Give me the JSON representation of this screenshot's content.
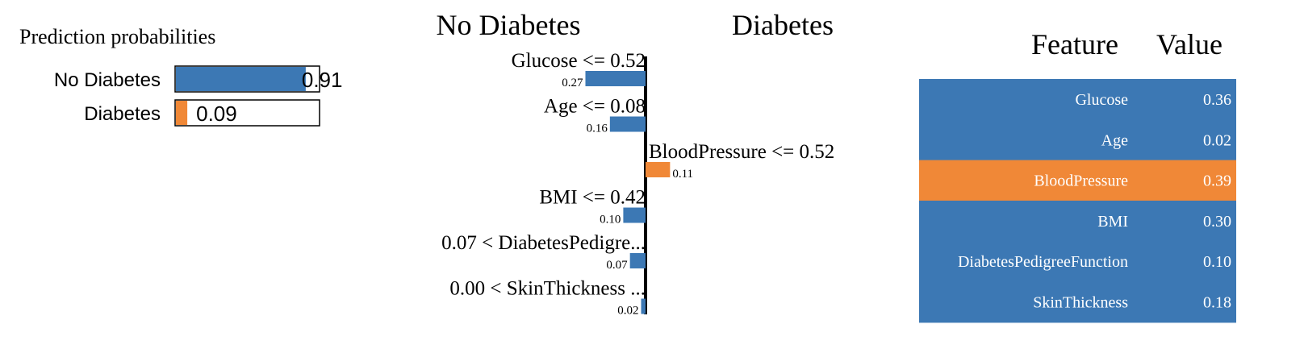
{
  "colors": {
    "negative": "#3c78b4",
    "positive": "#f08837",
    "text_dark": "#000000",
    "table_text": "#ffffff"
  },
  "prediction_probabilities": {
    "title": "Prediction probabilities",
    "classes": [
      {
        "label": "No Diabetes",
        "value": 0.91,
        "value_text": "0.91",
        "color": "negative"
      },
      {
        "label": "Diabetes",
        "value": 0.09,
        "value_text": "0.09",
        "color": "positive"
      }
    ]
  },
  "explanation": {
    "left_class": "No Diabetes",
    "right_class": "Diabetes"
  },
  "feature_table": {
    "headers": {
      "feature": "Feature",
      "value": "Value"
    },
    "rows": [
      {
        "feature": "Glucose",
        "value": "0.36",
        "color": "negative"
      },
      {
        "feature": "Age",
        "value": "0.02",
        "color": "negative"
      },
      {
        "feature": "BloodPressure",
        "value": "0.39",
        "color": "positive"
      },
      {
        "feature": "BMI",
        "value": "0.30",
        "color": "negative"
      },
      {
        "feature": "DiabetesPedigreeFunction",
        "value": "0.10",
        "color": "negative"
      },
      {
        "feature": "SkinThickness",
        "value": "0.18",
        "color": "negative"
      }
    ]
  },
  "chart_data": [
    {
      "type": "bar",
      "categories": [
        "No Diabetes",
        "Diabetes"
      ],
      "values": [
        0.91,
        0.09
      ],
      "title": "Prediction probabilities",
      "xlim": [
        0,
        1
      ]
    },
    {
      "type": "bar",
      "orientation": "horizontal",
      "categories": [
        "Glucose <= 0.52",
        "Age <= 0.08",
        "BloodPressure <= 0.52",
        "BMI <= 0.42",
        "0.07 < DiabetesPedigre...",
        "0.00 < SkinThickness ..."
      ],
      "values": [
        -0.27,
        -0.16,
        0.11,
        -0.1,
        -0.07,
        -0.02
      ],
      "value_labels": [
        "0.27",
        "0.16",
        "0.11",
        "0.10",
        "0.07",
        "0.02"
      ],
      "series": [
        {
          "name": "No Diabetes",
          "color": "#3c78b4"
        },
        {
          "name": "Diabetes",
          "color": "#f08837"
        }
      ]
    }
  ]
}
